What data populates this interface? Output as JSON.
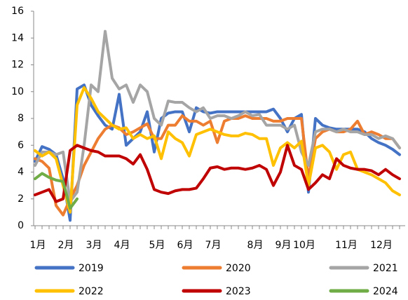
{
  "chart_data": {
    "type": "line",
    "categories": [
      "1月",
      null,
      null,
      null,
      "2月",
      null,
      null,
      null,
      "3月",
      null,
      null,
      null,
      "4月",
      null,
      null,
      null,
      null,
      "5月",
      null,
      null,
      null,
      "6月",
      null,
      null,
      null,
      "7月",
      null,
      null,
      null,
      null,
      null,
      "8月",
      null,
      null,
      null,
      "9月",
      null,
      null,
      "10月",
      null,
      null,
      null,
      null,
      null,
      "11月",
      null,
      null,
      null,
      null,
      "12月",
      null,
      null,
      null
    ],
    "ylim": [
      0,
      16
    ],
    "yticks": [
      0,
      2,
      4,
      6,
      8,
      10,
      12,
      14,
      16
    ],
    "legend": "bottom",
    "series": [
      {
        "name": "2019",
        "color": "#4472c4",
        "values": [
          4.8,
          5.9,
          5.7,
          5.3,
          3.5,
          0.4,
          10.2,
          10.5,
          9,
          8.2,
          7.5,
          7.2,
          9.8,
          6,
          6.5,
          7,
          8.5,
          5.5,
          8,
          8.4,
          8.5,
          8.5,
          7,
          8.8,
          8.5,
          8.4,
          8.5,
          8.5,
          8.5,
          8.5,
          8.5,
          8.5,
          8.5,
          8.5,
          8.7,
          8,
          7,
          8,
          8.3,
          2.5,
          8,
          7.5,
          7.3,
          7.2,
          7.2,
          7.2,
          7.2,
          7,
          6.5,
          6.2,
          6,
          5.7,
          5.3
        ]
      },
      {
        "name": "2020",
        "color": "#ed7d31",
        "values": [
          5,
          4.8,
          4.3,
          1.5,
          0.8,
          2,
          3,
          4.5,
          5.5,
          6.5,
          7.2,
          7.5,
          7.3,
          6.8,
          7,
          7.3,
          7.6,
          6.5,
          6.5,
          7.5,
          7.5,
          8.2,
          7.8,
          7.8,
          7.5,
          7.8,
          6.2,
          7.8,
          8,
          8,
          8.2,
          8,
          8,
          8,
          7.8,
          7.8,
          8,
          8,
          8,
          3.5,
          6.5,
          7,
          7.2,
          7,
          7,
          7.2,
          7.8,
          6.8,
          7,
          6.8,
          6.5,
          6.5,
          5.8
        ]
      },
      {
        "name": "2021",
        "color": "#a5a5a5",
        "values": [
          4.5,
          5.5,
          5.5,
          5.3,
          5.5,
          1.8,
          2.5,
          6,
          10.5,
          10,
          14.5,
          11,
          10.2,
          10.5,
          9.2,
          10.5,
          10,
          8,
          7.5,
          9.3,
          9.2,
          9.2,
          8.8,
          8.5,
          8.8,
          8,
          8.2,
          8.2,
          8,
          8.2,
          8.5,
          8.2,
          8.3,
          7.5,
          7.5,
          7.5,
          7.2,
          7.5,
          5.5,
          4.5,
          7,
          7.2,
          7.2,
          7,
          7.2,
          7,
          7,
          6.8,
          6.8,
          6.5,
          6.7,
          6.5,
          5.8
        ]
      },
      {
        "name": "2022",
        "color": "#ffc000",
        "values": [
          5.6,
          5.2,
          5.5,
          5,
          3,
          1,
          9,
          10.3,
          9.5,
          8.5,
          8,
          7.5,
          7.2,
          7.3,
          6.5,
          6.8,
          6.5,
          6.7,
          5,
          7,
          6.5,
          6.2,
          5.2,
          6.8,
          7,
          7.2,
          7,
          6.8,
          6.7,
          6.7,
          6.9,
          6.8,
          6.5,
          6.5,
          4.5,
          5.8,
          6.2,
          5.8,
          6.3,
          3,
          5.8,
          6,
          5.5,
          4.2,
          5.3,
          5.5,
          4.2,
          4,
          3.8,
          3.5,
          3.2,
          2.6,
          2.3
        ]
      },
      {
        "name": "2023",
        "color": "#c00000",
        "values": [
          2.3,
          2.5,
          2.7,
          1.8,
          2,
          5.6,
          6,
          5.8,
          5.6,
          5.5,
          5.2,
          5.2,
          5.2,
          5,
          4.6,
          5.3,
          4.2,
          2.7,
          2.5,
          2.4,
          2.6,
          2.7,
          2.7,
          2.8,
          3.5,
          4.3,
          4.4,
          4.2,
          4.3,
          4.3,
          4.2,
          4.3,
          4.5,
          4.2,
          3,
          4,
          6,
          4.5,
          4.2,
          2.7,
          3.2,
          3.8,
          3.5,
          5,
          4.5,
          4.3,
          4.2,
          4.2,
          4.1,
          3.8,
          4.2,
          3.8,
          3.5
        ]
      },
      {
        "name": "2024",
        "color": "#70ad47",
        "values": [
          3.5,
          3.9,
          3.6,
          3.4,
          3.3,
          1.3,
          2,
          null,
          null,
          null,
          null,
          null,
          null,
          null,
          null,
          null,
          null,
          null,
          null,
          null,
          null,
          null,
          null,
          null,
          null,
          null,
          null,
          null,
          null,
          null,
          null,
          null,
          null,
          null,
          null,
          null,
          null,
          null,
          null,
          null,
          null,
          null,
          null,
          null,
          null,
          null,
          null,
          null,
          null,
          null,
          null,
          null,
          null
        ]
      }
    ]
  }
}
